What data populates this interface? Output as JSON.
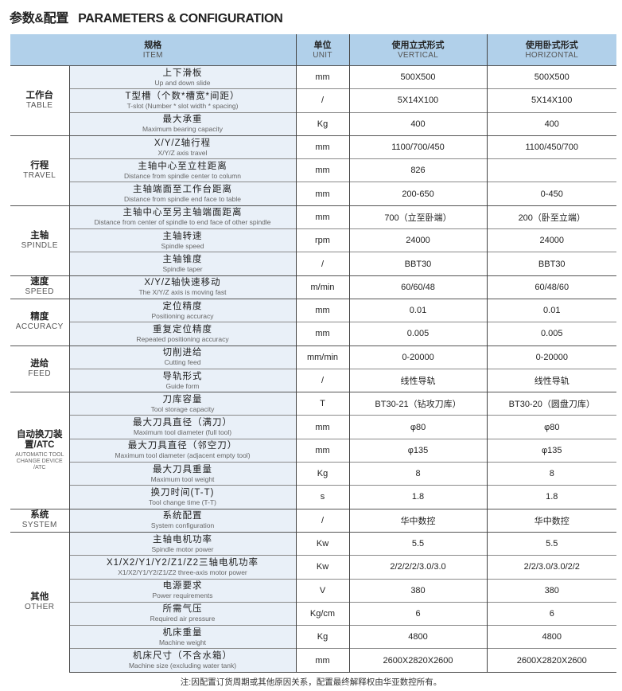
{
  "title": {
    "zh": "参数&配置",
    "en": "PARAMETERS & CONFIGURATION"
  },
  "header": {
    "item": {
      "zh": "规格",
      "en": "ITEM"
    },
    "unit": {
      "zh": "单位",
      "en": "UNIT"
    },
    "vertical": {
      "zh": "使用立式形式",
      "en": "VERTICAL"
    },
    "horizontal": {
      "zh": "使用卧式形式",
      "en": "HORIZONTAL"
    }
  },
  "colors": {
    "header_bg": "#b1d0ea",
    "item_bg": "#e9f0f8"
  },
  "groups": [
    {
      "zh": "工作台",
      "en": "TABLE",
      "rows": [
        {
          "zh": "上下滑板",
          "en": "Up and down slide",
          "unit": "mm",
          "vertical": "500X500",
          "horizontal": "500X500"
        },
        {
          "zh": "T型槽（个数*槽宽*间距）",
          "en": "T-slot (Number * slot width * spacing)",
          "unit": "/",
          "vertical": "5X14X100",
          "horizontal": "5X14X100"
        },
        {
          "zh": "最大承重",
          "en": "Maximum bearing capacity",
          "unit": "Kg",
          "vertical": "400",
          "horizontal": "400"
        }
      ]
    },
    {
      "zh": "行程",
      "en": "TRAVEL",
      "rows": [
        {
          "zh": "X/Y/Z轴行程",
          "en": "X/Y/Z axis travel",
          "unit": "mm",
          "vertical": "1100/700/450",
          "horizontal": "1100/450/700"
        },
        {
          "zh": "主轴中心至立柱距离",
          "en": "Distance from spindle center to column",
          "unit": "mm",
          "vertical": "826",
          "horizontal": ""
        },
        {
          "zh": "主轴端面至工作台距离",
          "en": "Distance from spindle end face to table",
          "unit": "mm",
          "vertical": "200-650",
          "horizontal": "0-450"
        }
      ]
    },
    {
      "zh": "主轴",
      "en": "SPINDLE",
      "rows": [
        {
          "zh": "主轴中心至另主轴端面距离",
          "en": "Distance from center of spindle to end face of other spindle",
          "unit": "mm",
          "vertical": "700（立至卧端）",
          "horizontal": "200（卧至立端）"
        },
        {
          "zh": "主轴转速",
          "en": "Spindle speed",
          "unit": "rpm",
          "vertical": "24000",
          "horizontal": "24000"
        },
        {
          "zh": "主轴锥度",
          "en": "Spindle taper",
          "unit": "/",
          "vertical": "BBT30",
          "horizontal": "BBT30"
        }
      ]
    },
    {
      "zh": "速度",
      "en": "SPEED",
      "rows": [
        {
          "zh": "X/Y/Z轴快速移动",
          "en": "The X/Y/Z axis is moving fast",
          "unit": "m/min",
          "vertical": "60/60/48",
          "horizontal": "60/48/60"
        }
      ]
    },
    {
      "zh": "精度",
      "en": "ACCURACY",
      "rows": [
        {
          "zh": "定位精度",
          "en": "Positioning accuracy",
          "unit": "mm",
          "vertical": "0.01",
          "horizontal": "0.01"
        },
        {
          "zh": "重复定位精度",
          "en": "Repeated positioning accuracy",
          "unit": "mm",
          "vertical": "0.005",
          "horizontal": "0.005"
        }
      ]
    },
    {
      "zh": "进给",
      "en": "FEED",
      "rows": [
        {
          "zh": "切削进给",
          "en": "Cutting feed",
          "unit": "mm/min",
          "vertical": "0-20000",
          "horizontal": "0-20000"
        },
        {
          "zh": "导轨形式",
          "en": "Guide form",
          "unit": "/",
          "vertical": "线性导轨",
          "horizontal": "线性导轨"
        }
      ]
    },
    {
      "zh": "自动换刀装置/ATC",
      "en": "",
      "en2": "AUTOMATIC TOOL CHANGE DEVICE /ATC",
      "rows": [
        {
          "zh": "刀库容量",
          "en": "Tool storage capacity",
          "unit": "T",
          "vertical": "BT30-21（钻攻刀库）",
          "horizontal": "BT30-20（圆盘刀库）"
        },
        {
          "zh": "最大刀具直径（满刀）",
          "en": "Maximum tool diameter (full tool)",
          "unit": "mm",
          "vertical": "φ80",
          "horizontal": "φ80"
        },
        {
          "zh": "最大刀具直径（邻空刀）",
          "en": "Maximum tool diameter (adjacent empty tool)",
          "unit": "mm",
          "vertical": "φ135",
          "horizontal": "φ135"
        },
        {
          "zh": "最大刀具重量",
          "en": "Maximum tool weight",
          "unit": "Kg",
          "vertical": "8",
          "horizontal": "8"
        },
        {
          "zh": "换刀时间(T-T)",
          "en": "Tool change time (T-T)",
          "unit": "s",
          "vertical": "1.8",
          "horizontal": "1.8"
        }
      ]
    },
    {
      "zh": "系统",
      "en": "SYSTEM",
      "rows": [
        {
          "zh": "系统配置",
          "en": "System configuration",
          "unit": "/",
          "vertical": "华中数控",
          "horizontal": "华中数控"
        }
      ]
    },
    {
      "zh": "其他",
      "en": "OTHER",
      "rows": [
        {
          "zh": "主轴电机功率",
          "en": "Spindle motor power",
          "unit": "Kw",
          "vertical": "5.5",
          "horizontal": "5.5"
        },
        {
          "zh": "X1/X2/Y1/Y2/Z1/Z2三轴电机功率",
          "en": "X1/X2/Y1/Y2/Z1/Z2 three-axis motor power",
          "unit": "Kw",
          "vertical": "2/2/2/2/3.0/3.0",
          "horizontal": "2/2/3.0/3.0/2/2"
        },
        {
          "zh": "电源要求",
          "en": "Power requirements",
          "unit": "V",
          "vertical": "380",
          "horizontal": "380"
        },
        {
          "zh": "所需气压",
          "en": "Required air pressure",
          "unit": "Kg/cm",
          "vertical": "6",
          "horizontal": "6"
        },
        {
          "zh": "机床重量",
          "en": "Machine weight",
          "unit": "Kg",
          "vertical": "4800",
          "horizontal": "4800"
        },
        {
          "zh": "机床尺寸（不含水箱）",
          "en": "Machine size (excluding water tank)",
          "unit": "mm",
          "vertical": "2600X2820X2600",
          "horizontal": "2600X2820X2600"
        }
      ]
    }
  ],
  "note": "注:因配置订货周期或其他原因关系，配置最终解释权由华亚数控所有。"
}
